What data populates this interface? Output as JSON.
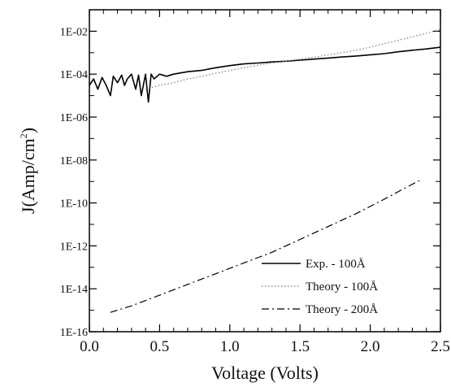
{
  "chart_data": {
    "type": "line",
    "title": "",
    "xlabel": "Voltage (Volts)",
    "ylabel": "J(Amp/cm²)",
    "ylabel_parts": {
      "prefix": "J(Amp/cm",
      "sup": "2",
      "suffix": ")"
    },
    "xlim": [
      0.0,
      2.5
    ],
    "ylim_log10": [
      -16,
      -1
    ],
    "y_scale": "log",
    "grid": false,
    "legend_position": "bottom-right",
    "x_ticks": [
      0.0,
      0.5,
      1.0,
      1.5,
      2.0,
      2.5
    ],
    "x_tick_labels": [
      "0.0",
      "0.5",
      "1.0",
      "1.5",
      "2.0",
      "2.5"
    ],
    "y_ticks_log10": [
      -16,
      -14,
      -12,
      -10,
      -8,
      -6,
      -4,
      -2
    ],
    "y_tick_labels": [
      "1E-16",
      "1E-14",
      "1E-12",
      "1E-10",
      "1E-08",
      "1E-06",
      "1E-04",
      "1E-02"
    ],
    "series": [
      {
        "name": "Exp. - 100Å",
        "style": "solid",
        "color": "#000000",
        "x": [
          0.0,
          0.03,
          0.06,
          0.09,
          0.12,
          0.15,
          0.17,
          0.2,
          0.23,
          0.25,
          0.27,
          0.3,
          0.33,
          0.35,
          0.37,
          0.4,
          0.42,
          0.44,
          0.46,
          0.5,
          0.55,
          0.6,
          0.7,
          0.8,
          0.9,
          1.0,
          1.1,
          1.2,
          1.3,
          1.4,
          1.5,
          1.6,
          1.7,
          1.8,
          1.9,
          2.0,
          2.1,
          2.2,
          2.3,
          2.4,
          2.5
        ],
        "y": [
          3e-05,
          6e-05,
          2e-05,
          7e-05,
          3e-05,
          1e-05,
          8e-05,
          4e-05,
          9e-05,
          3e-05,
          6e-05,
          0.0001,
          2e-05,
          9e-05,
          1e-05,
          0.0001,
          5e-06,
          0.0001,
          6e-05,
          0.0001,
          8e-05,
          0.0001,
          0.00013,
          0.00015,
          0.0002,
          0.00025,
          0.0003,
          0.00033,
          0.00037,
          0.0004,
          0.00045,
          0.0005,
          0.00056,
          0.00063,
          0.0007,
          0.0008,
          0.0009,
          0.0011,
          0.0013,
          0.0015,
          0.0018
        ]
      },
      {
        "name": "Theory - 100Å",
        "style": "dotted",
        "color": "#8a8a8a",
        "x": [
          0.4,
          0.5,
          0.6,
          0.7,
          0.8,
          0.9,
          1.0,
          1.1,
          1.2,
          1.3,
          1.4,
          1.5,
          1.6,
          1.7,
          1.8,
          1.9,
          2.0,
          2.1,
          2.2,
          2.3,
          2.4,
          2.5
        ],
        "y": [
          2e-05,
          3e-05,
          4e-05,
          6e-05,
          8e-05,
          0.00011,
          0.00015,
          0.0002,
          0.00026,
          0.00033,
          0.0004,
          0.0005,
          0.00062,
          0.00078,
          0.001,
          0.0013,
          0.0018,
          0.0026,
          0.0038,
          0.0055,
          0.008,
          0.012
        ]
      },
      {
        "name": "Theory - 200Å",
        "style": "dashed",
        "color": "#000000",
        "x": [
          0.15,
          0.3,
          0.5,
          0.7,
          0.9,
          1.1,
          1.3,
          1.5,
          1.7,
          1.9,
          2.1,
          2.25,
          2.35
        ],
        "y": [
          8e-16,
          1.6e-15,
          5e-15,
          1.6e-14,
          5e-14,
          1.6e-13,
          5e-13,
          2e-12,
          8e-12,
          3.2e-11,
          1.5e-10,
          5e-10,
          1.1e-09
        ]
      }
    ]
  }
}
